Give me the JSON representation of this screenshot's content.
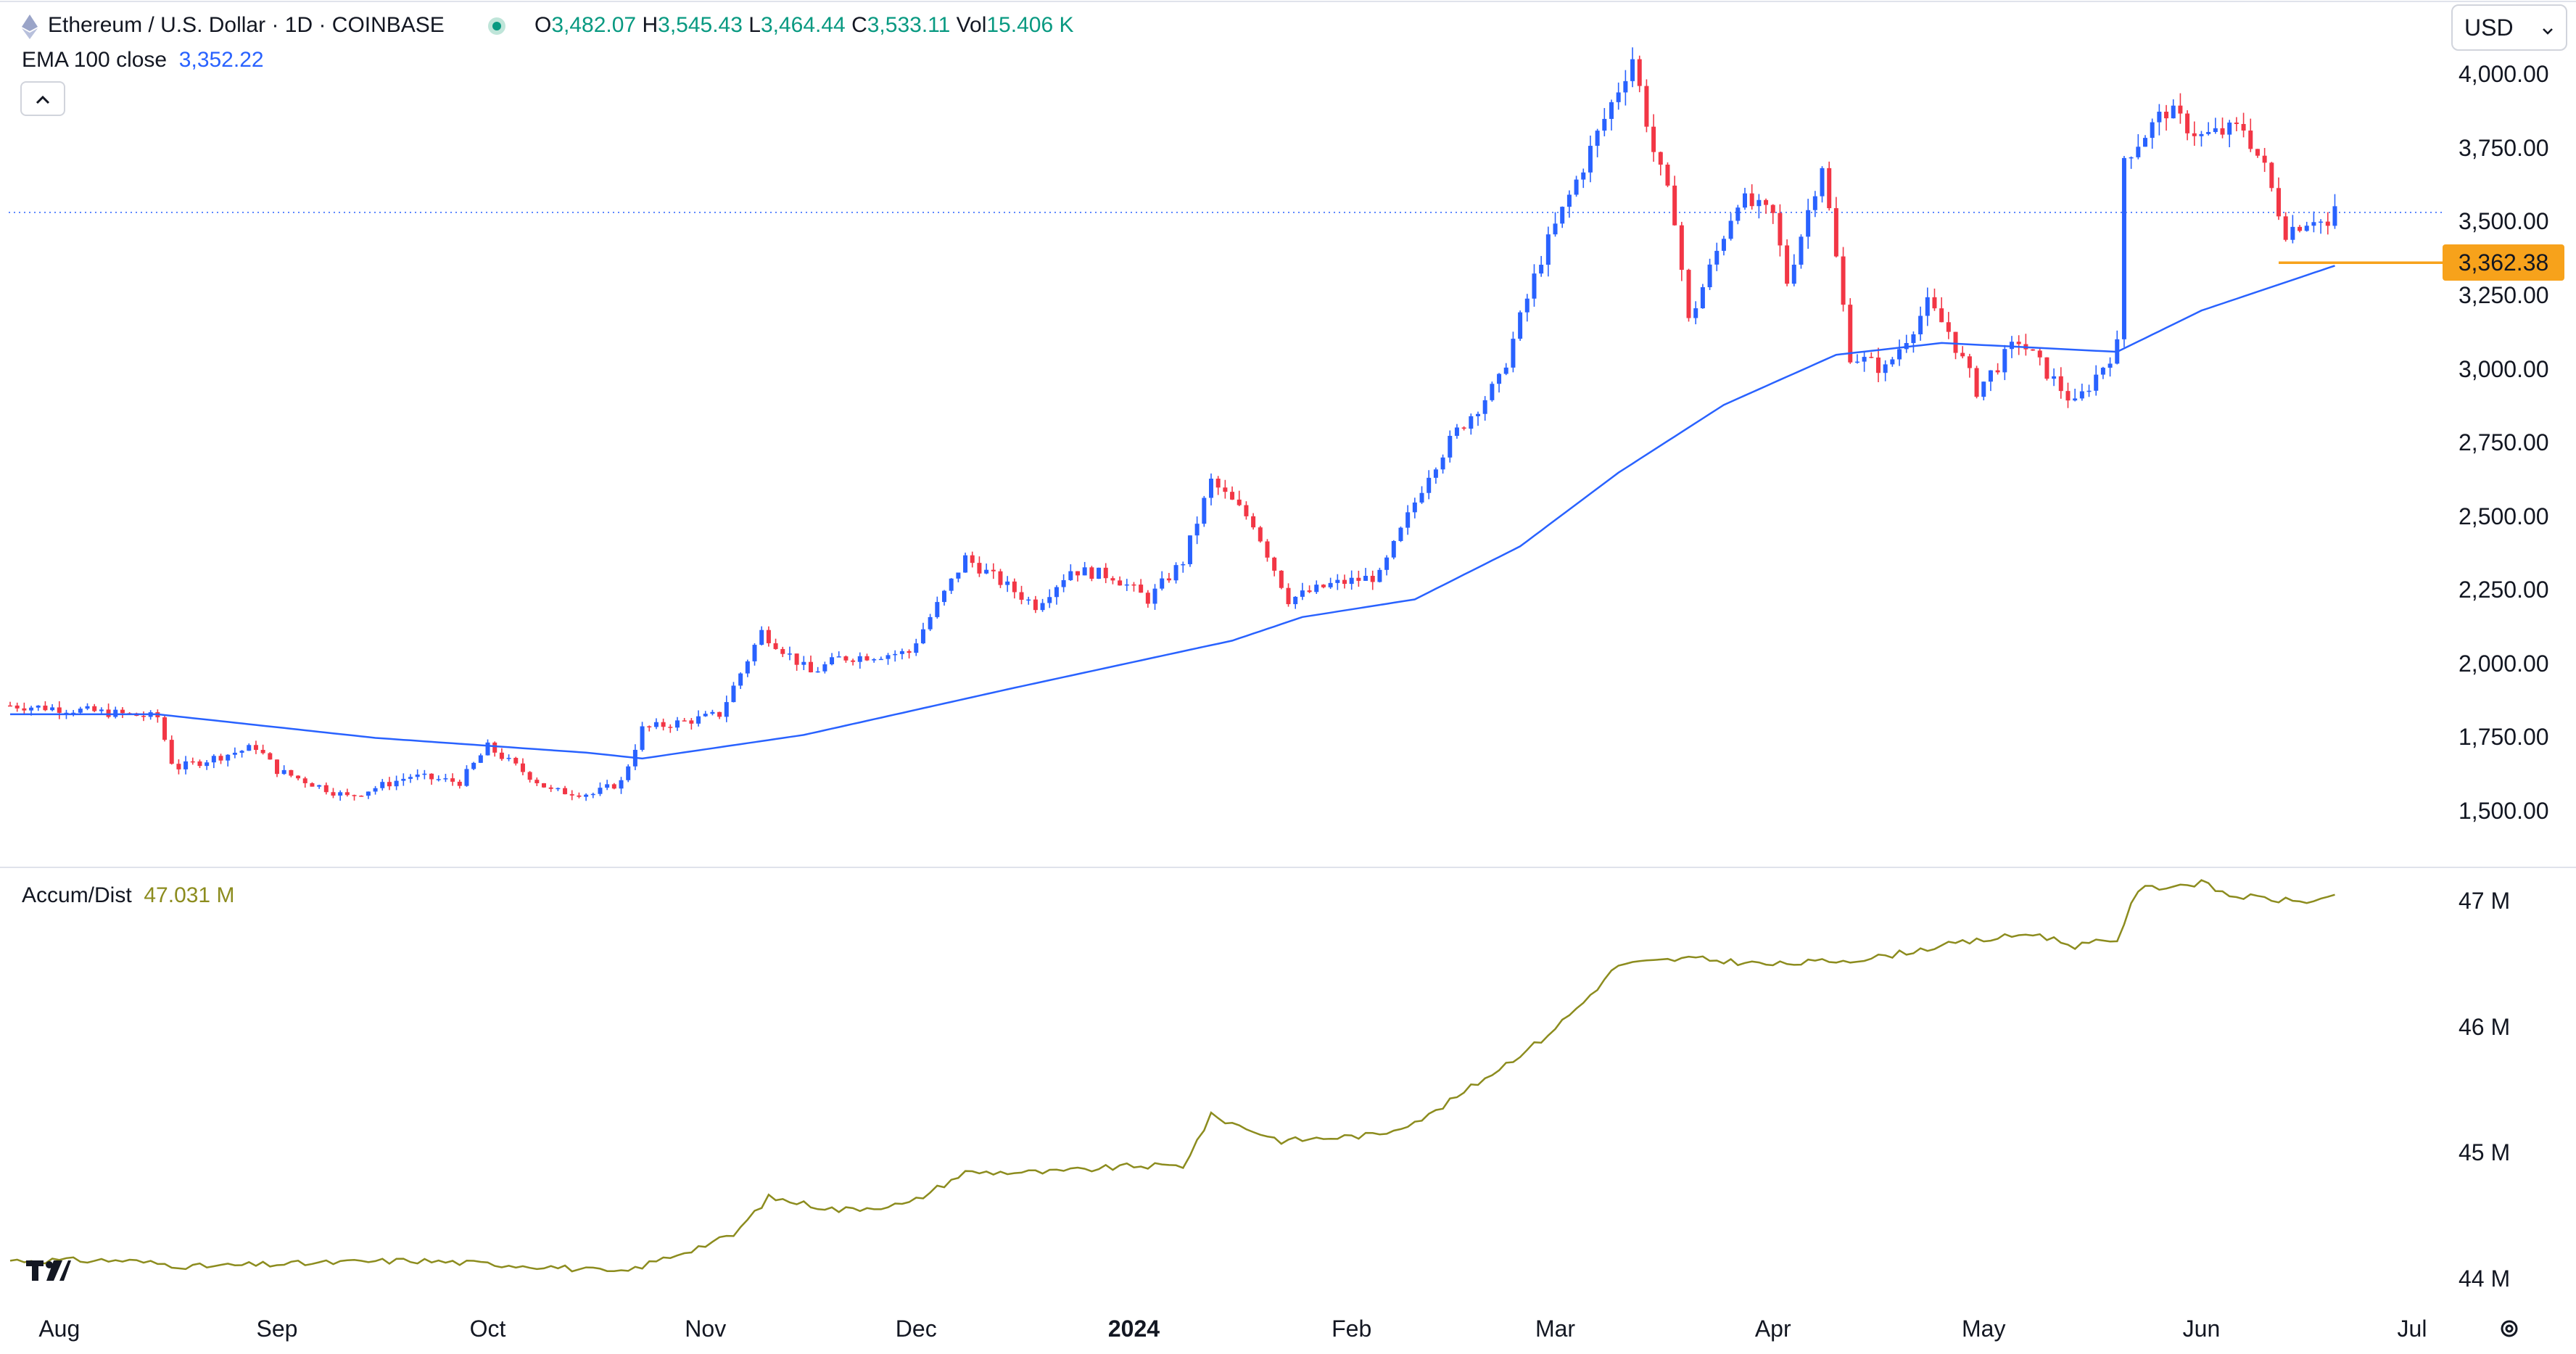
{
  "header": {
    "symbol_title": "Ethereum / U.S. Dollar · 1D · COINBASE",
    "o_label": "O",
    "o_value": "3,482.07",
    "h_label": "H",
    "h_value": "3,545.43",
    "l_label": "L",
    "l_value": "3,464.44",
    "c_label": "C",
    "c_value": "3,533.11",
    "vol_label": "Vol",
    "vol_value": "15.406 K",
    "ema_label": "EMA 100 close",
    "ema_value": "3,352.22",
    "ad_label": "Accum/Dist",
    "ad_value": "47.031 M",
    "currency": "USD",
    "collapse_icon": "chevron-up-icon",
    "logo_icon": "tradingview-logo-icon",
    "settings_icon": "gear-icon"
  },
  "colors": {
    "up": "#2962ff",
    "down": "#f23645",
    "ema": "#2962ff",
    "ad": "#8c8c1e",
    "support": "#f7a21b",
    "grid": "#e0e3eb"
  },
  "chart_data": [
    {
      "type": "candlestick",
      "title": "Ethereum / U.S. Dollar · 1D · COINBASE",
      "ylim": [
        1350,
        4180
      ],
      "yticks": [
        "1,500.00",
        "1,750.00",
        "2,000.00",
        "2,250.00",
        "2,500.00",
        "2,750.00",
        "3,000.00",
        "3,250.00",
        "3,500.00",
        "3,750.00",
        "4,000.00"
      ],
      "ytick_values": [
        1500,
        1750,
        2000,
        2250,
        2500,
        2750,
        3000,
        3250,
        3500,
        3750,
        4000
      ],
      "x_labels": [
        "Aug",
        "Sep",
        "Oct",
        "Nov",
        "Dec",
        "2024",
        "Feb",
        "Mar",
        "Apr",
        "May",
        "Jun",
        "Jul"
      ],
      "last_price": 3533.11,
      "support_level": {
        "value": 3362.38,
        "label": "3,362.38"
      },
      "price_anchors": [
        [
          "2023-07-25",
          1860
        ],
        [
          "2023-08-01",
          1850
        ],
        [
          "2023-08-15",
          1820
        ],
        [
          "2023-08-17",
          1670
        ],
        [
          "2023-08-18",
          1650
        ],
        [
          "2023-08-29",
          1720
        ],
        [
          "2023-09-01",
          1640
        ],
        [
          "2023-09-11",
          1550
        ],
        [
          "2023-09-20",
          1620
        ],
        [
          "2023-09-27",
          1600
        ],
        [
          "2023-10-01",
          1720
        ],
        [
          "2023-10-10",
          1570
        ],
        [
          "2023-10-16",
          1560
        ],
        [
          "2023-10-20",
          1600
        ],
        [
          "2023-10-23",
          1780
        ],
        [
          "2023-10-30",
          1810
        ],
        [
          "2023-11-03",
          1830
        ],
        [
          "2023-11-09",
          2110
        ],
        [
          "2023-11-16",
          1970
        ],
        [
          "2023-11-20",
          2020
        ],
        [
          "2023-11-30",
          2040
        ],
        [
          "2023-12-08",
          2360
        ],
        [
          "2023-12-18",
          2200
        ],
        [
          "2023-12-23",
          2320
        ],
        [
          "2023-12-29",
          2300
        ],
        [
          "2024-01-03",
          2220
        ],
        [
          "2024-01-08",
          2350
        ],
        [
          "2024-01-12",
          2620
        ],
        [
          "2024-01-18",
          2480
        ],
        [
          "2024-01-23",
          2220
        ],
        [
          "2024-01-29",
          2270
        ],
        [
          "2024-02-05",
          2300
        ],
        [
          "2024-02-12",
          2650
        ],
        [
          "2024-02-16",
          2790
        ],
        [
          "2024-02-22",
          2960
        ],
        [
          "2024-02-28",
          3380
        ],
        [
          "2024-03-04",
          3640
        ],
        [
          "2024-03-12",
          4060
        ],
        [
          "2024-03-15",
          3740
        ],
        [
          "2024-03-18",
          3520
        ],
        [
          "2024-03-20",
          3160
        ],
        [
          "2024-03-27",
          3580
        ],
        [
          "2024-04-01",
          3520
        ],
        [
          "2024-04-03",
          3300
        ],
        [
          "2024-04-08",
          3700
        ],
        [
          "2024-04-12",
          3050
        ],
        [
          "2024-04-17",
          3000
        ],
        [
          "2024-04-23",
          3220
        ],
        [
          "2024-04-26",
          3130
        ],
        [
          "2024-04-30",
          2930
        ],
        [
          "2024-05-06",
          3100
        ],
        [
          "2024-05-14",
          2880
        ],
        [
          "2024-05-20",
          3080
        ],
        [
          "2024-05-21",
          3720
        ],
        [
          "2024-05-27",
          3880
        ],
        [
          "2024-06-01",
          3790
        ],
        [
          "2024-06-07",
          3820
        ],
        [
          "2024-06-10",
          3680
        ],
        [
          "2024-06-13",
          3470
        ],
        [
          "2024-06-17",
          3520
        ],
        [
          "2024-06-19",
          3482
        ],
        [
          "2024-06-20",
          3533.11
        ]
      ]
    },
    {
      "type": "line",
      "series_label": "EMA 100 close",
      "last_value": 3352.22,
      "anchors": [
        [
          "2023-07-25",
          1830
        ],
        [
          "2023-08-15",
          1830
        ],
        [
          "2023-09-15",
          1750
        ],
        [
          "2023-10-15",
          1700
        ],
        [
          "2023-10-23",
          1680
        ],
        [
          "2023-11-15",
          1760
        ],
        [
          "2023-12-15",
          1920
        ],
        [
          "2024-01-15",
          2080
        ],
        [
          "2024-01-25",
          2160
        ],
        [
          "2024-02-10",
          2220
        ],
        [
          "2024-02-25",
          2400
        ],
        [
          "2024-03-10",
          2650
        ],
        [
          "2024-03-25",
          2880
        ],
        [
          "2024-04-10",
          3050
        ],
        [
          "2024-04-25",
          3090
        ],
        [
          "2024-05-20",
          3060
        ],
        [
          "2024-06-01",
          3200
        ],
        [
          "2024-06-20",
          3352.22
        ]
      ]
    },
    {
      "type": "line",
      "series_label": "Accum/Dist",
      "last_value": "47.031 M",
      "ylim": [
        43.85,
        47.25
      ],
      "yticks": [
        "44 M",
        "45 M",
        "46 M",
        "47 M"
      ],
      "ytick_values": [
        44,
        45,
        46,
        47
      ],
      "anchors": [
        [
          "2023-07-25",
          44.15
        ],
        [
          "2023-08-10",
          44.15
        ],
        [
          "2023-08-20",
          44.1
        ],
        [
          "2023-09-20",
          44.15
        ],
        [
          "2023-10-10",
          44.1
        ],
        [
          "2023-10-20",
          44.05
        ],
        [
          "2023-10-28",
          44.2
        ],
        [
          "2023-11-05",
          44.35
        ],
        [
          "2023-11-10",
          44.65
        ],
        [
          "2023-11-20",
          44.55
        ],
        [
          "2023-11-30",
          44.6
        ],
        [
          "2023-12-08",
          44.85
        ],
        [
          "2023-12-20",
          44.85
        ],
        [
          "2024-01-01",
          44.9
        ],
        [
          "2024-01-08",
          44.9
        ],
        [
          "2024-01-12",
          45.3
        ],
        [
          "2024-01-22",
          45.1
        ],
        [
          "2024-02-05",
          45.15
        ],
        [
          "2024-02-12",
          45.3
        ],
        [
          "2024-02-20",
          45.6
        ],
        [
          "2024-02-28",
          45.9
        ],
        [
          "2024-03-05",
          46.2
        ],
        [
          "2024-03-10",
          46.5
        ],
        [
          "2024-03-20",
          46.55
        ],
        [
          "2024-04-01",
          46.5
        ],
        [
          "2024-04-15",
          46.55
        ],
        [
          "2024-04-25",
          46.65
        ],
        [
          "2024-05-08",
          46.75
        ],
        [
          "2024-05-14",
          46.65
        ],
        [
          "2024-05-20",
          46.7
        ],
        [
          "2024-05-23",
          47.1
        ],
        [
          "2024-06-01",
          47.15
        ],
        [
          "2024-06-05",
          47.05
        ],
        [
          "2024-06-15",
          47.0
        ],
        [
          "2024-06-20",
          47.031
        ]
      ]
    }
  ]
}
